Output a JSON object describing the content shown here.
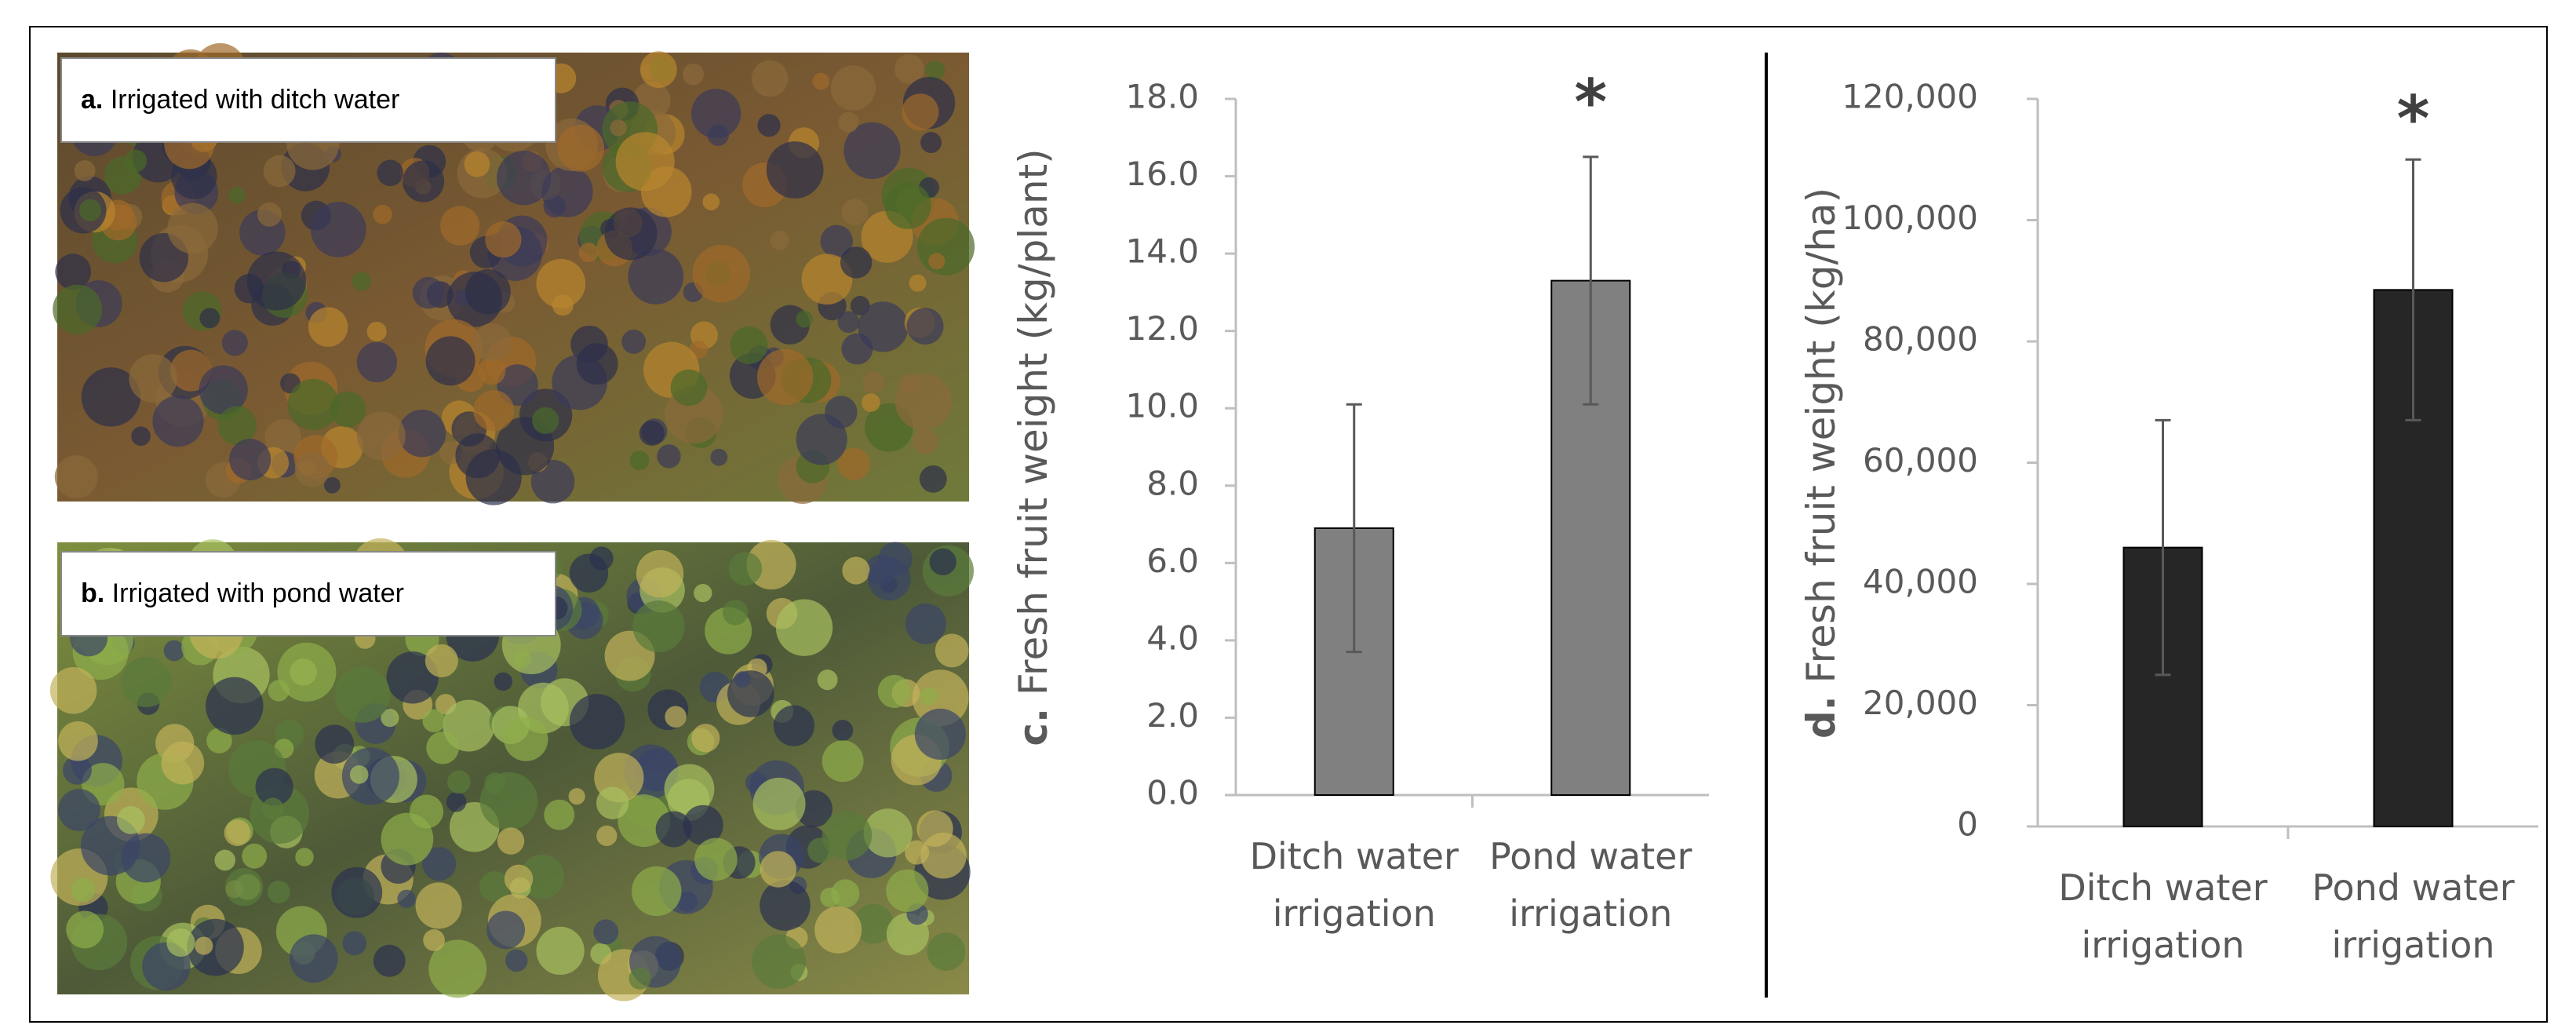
{
  "photos": [
    {
      "label": "a.",
      "caption": "Irrigated with ditch water"
    },
    {
      "label": "b.",
      "caption": "Irrigated with pond water"
    }
  ],
  "chart_data": [
    {
      "type": "bar",
      "panel_label": "c.",
      "y_label": "Fresh fruit weight (kg/plant)",
      "categories": [
        "Ditch water irrigation",
        "Pond water irrigation"
      ],
      "values": [
        6.9,
        13.3
      ],
      "errors": [
        3.2,
        3.2
      ],
      "color": "#808080",
      "annotations": [
        null,
        "*"
      ],
      "ylim": [
        0,
        18
      ],
      "yticks": [
        {
          "value": 0,
          "label": "0.0"
        },
        {
          "value": 2,
          "label": "2.0"
        },
        {
          "value": 4,
          "label": "4.0"
        },
        {
          "value": 6,
          "label": "6.0"
        },
        {
          "value": 8,
          "label": "8.0"
        },
        {
          "value": 10,
          "label": "10.0"
        },
        {
          "value": 12,
          "label": "12.0"
        },
        {
          "value": 14,
          "label": "14.0"
        },
        {
          "value": 16,
          "label": "16.0"
        },
        {
          "value": 18,
          "label": "18.0"
        }
      ]
    },
    {
      "type": "bar",
      "panel_label": "d.",
      "y_label": "Fresh fruit weight (kg/ha)",
      "categories": [
        "Ditch water irrigation",
        "Pond water irrigation"
      ],
      "values": [
        46000,
        88500
      ],
      "errors": [
        21000,
        21500
      ],
      "color": "#262626",
      "annotations": [
        null,
        "*"
      ],
      "ylim": [
        0,
        120000
      ],
      "yticks": [
        0,
        {
          "value": 20000,
          "label": "20,000"
        },
        {
          "value": 40000,
          "label": "40,000"
        },
        {
          "value": 60000,
          "label": "60,000"
        },
        {
          "value": 80000,
          "label": "80,000"
        },
        {
          "value": 100000,
          "label": "100,000"
        },
        {
          "value": 120000,
          "label": "120,000"
        }
      ]
    }
  ]
}
